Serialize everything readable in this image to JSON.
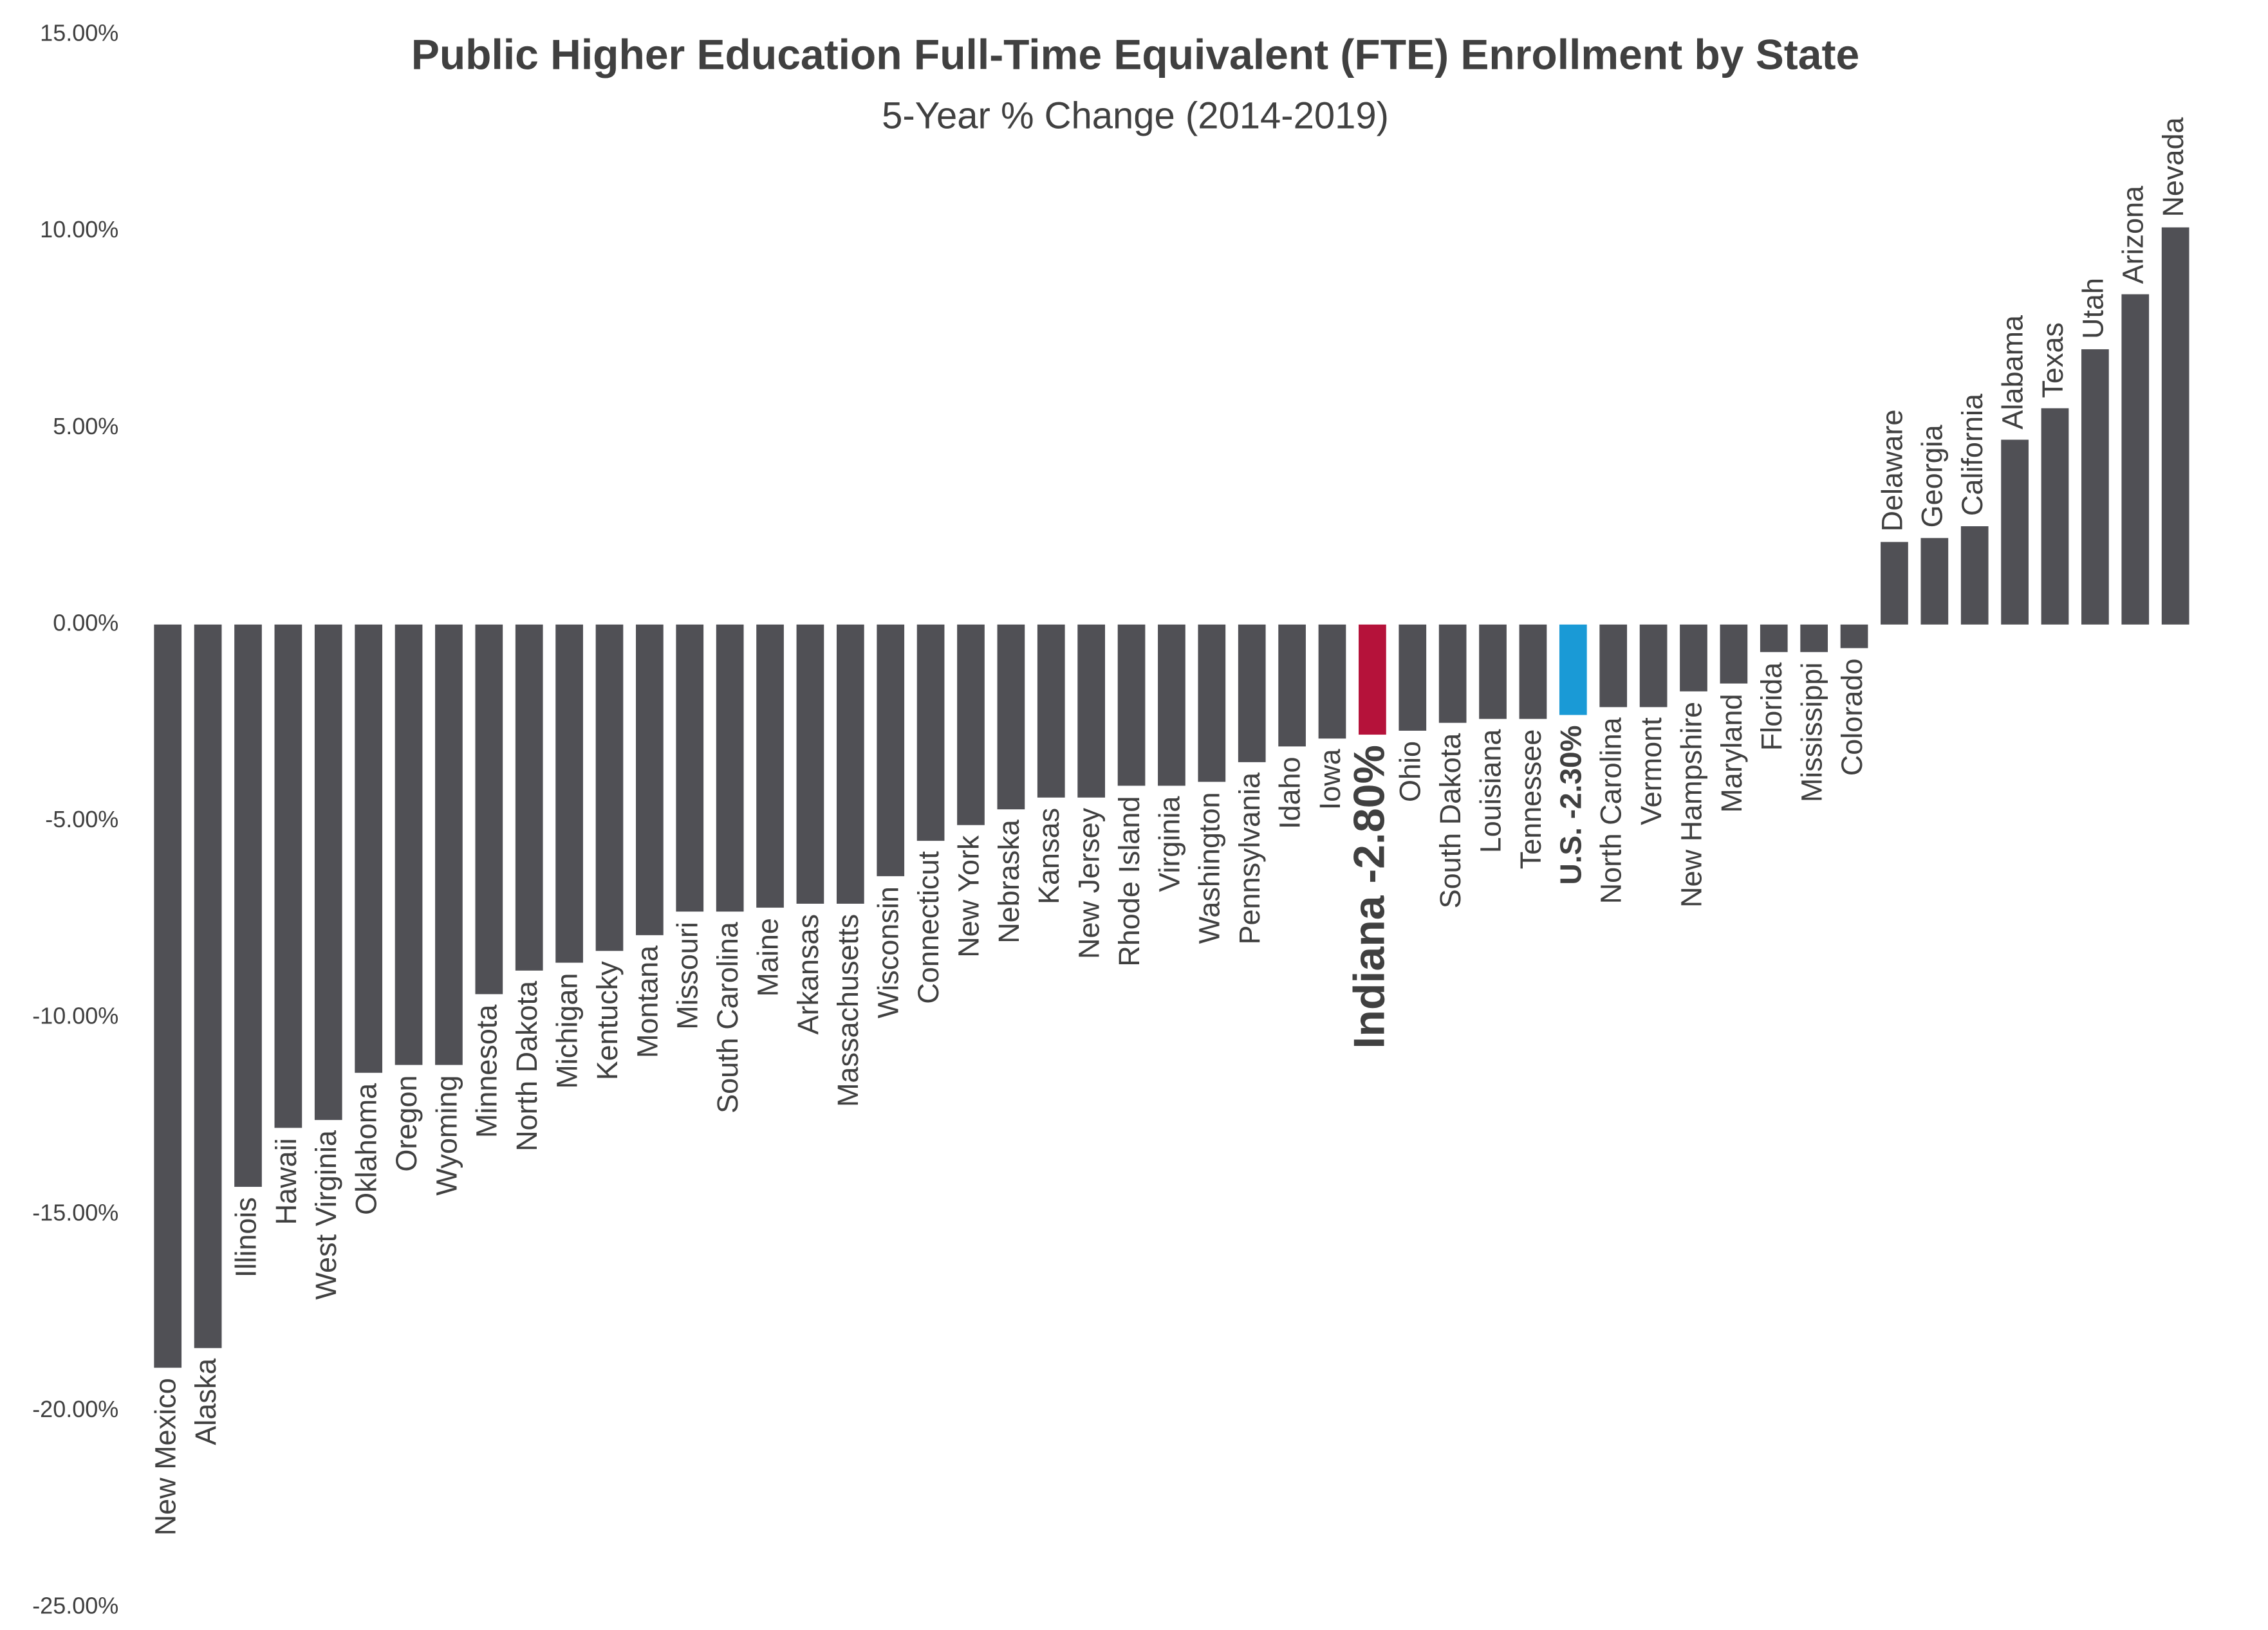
{
  "chart_data": {
    "type": "bar",
    "title": "Public Higher Education Full-Time Equivalent (FTE) Enrollment by State",
    "subtitle": "5-Year % Change (2014-2019)",
    "categories": [
      "New Mexico",
      "Alaska",
      "Illinois",
      "Hawaii",
      "West Virginia",
      "Oklahoma",
      "Oregon",
      "Wyoming",
      "Minnesota",
      "North Dakota",
      "Michigan",
      "Kentucky",
      "Montana",
      "Missouri",
      "South Carolina",
      "Maine",
      "Arkansas",
      "Massachusetts",
      "Wisconsin",
      "Connecticut",
      "New York",
      "Nebraska",
      "Kansas",
      "New Jersey",
      "Rhode Island",
      "Virginia",
      "Washington",
      "Pennsylvania",
      "Idaho",
      "Iowa",
      "Indiana -2.80%",
      "Ohio",
      "South Dakota",
      "Louisiana",
      "Tennessee",
      "U.S. -2.30%",
      "North Carolina",
      "Vermont",
      "New Hampshire",
      "Maryland",
      "Florida",
      "Mississippi",
      "Colorado",
      "Delaware",
      "Georgia",
      "California",
      "Alabama",
      "Texas",
      "Utah",
      "Arizona",
      "Nevada"
    ],
    "values": [
      -18.9,
      -18.4,
      -14.3,
      -12.8,
      -12.6,
      -11.4,
      -11.2,
      -11.2,
      -9.4,
      -8.8,
      -8.6,
      -8.3,
      -7.9,
      -7.3,
      -7.3,
      -7.2,
      -7.1,
      -7.1,
      -6.4,
      -5.5,
      -5.1,
      -4.7,
      -4.4,
      -4.4,
      -4.1,
      -4.1,
      -4.0,
      -3.5,
      -3.1,
      -2.9,
      -2.8,
      -2.7,
      -2.5,
      -2.4,
      -2.4,
      -2.3,
      -2.1,
      -2.1,
      -1.7,
      -1.5,
      -0.7,
      -0.7,
      -0.6,
      2.1,
      2.2,
      2.5,
      4.7,
      5.5,
      7.0,
      8.4,
      10.1
    ],
    "color": "#505055",
    "colors": [
      "#505055",
      "#505055",
      "#505055",
      "#505055",
      "#505055",
      "#505055",
      "#505055",
      "#505055",
      "#505055",
      "#505055",
      "#505055",
      "#505055",
      "#505055",
      "#505055",
      "#505055",
      "#505055",
      "#505055",
      "#505055",
      "#505055",
      "#505055",
      "#505055",
      "#505055",
      "#505055",
      "#505055",
      "#505055",
      "#505055",
      "#505055",
      "#505055",
      "#505055",
      "#505055",
      "#b5123a",
      "#505055",
      "#505055",
      "#505055",
      "#505055",
      "#1a9ad6",
      "#505055",
      "#505055",
      "#505055",
      "#505055",
      "#505055",
      "#505055",
      "#505055",
      "#505055",
      "#505055",
      "#505055",
      "#505055",
      "#505055",
      "#505055",
      "#505055",
      "#505055"
    ],
    "ylim": [
      -25,
      15
    ],
    "yticks": [
      {
        "value": 15,
        "label": "15.00%"
      },
      {
        "value": 10,
        "label": "10.00%"
      },
      {
        "value": 5,
        "label": "5.00%"
      },
      {
        "value": 0,
        "label": "0.00%"
      },
      {
        "value": -5,
        "label": "-5.00%"
      },
      {
        "value": -10,
        "label": "-10.00%"
      },
      {
        "value": -15,
        "label": "-15.00%"
      },
      {
        "value": -20,
        "label": "-20.00%"
      },
      {
        "value": -25,
        "label": "-25.00%"
      }
    ],
    "grid": false
  }
}
